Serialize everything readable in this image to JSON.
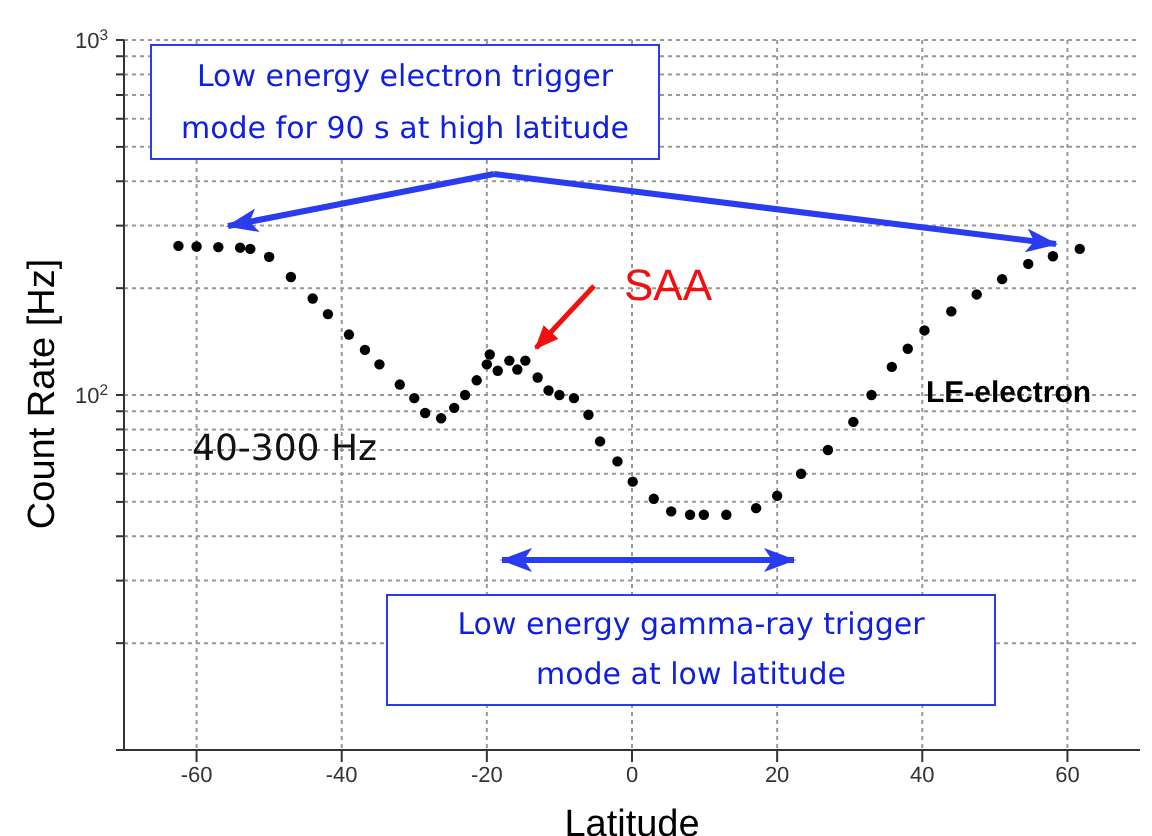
{
  "chart_data": {
    "type": "scatter",
    "xlabel": "Latitude",
    "ylabel": "Count Rate [Hz]",
    "log": "y",
    "grid": true,
    "marker": "circle",
    "xlim": [
      -70,
      70
    ],
    "xticks": [
      -60,
      -40,
      -20,
      0,
      20,
      40,
      60
    ],
    "ylim": [
      10,
      1000
    ],
    "yticks": [
      {
        "value": 10,
        "label": null
      },
      {
        "value": 20,
        "label": null
      },
      {
        "value": 30,
        "label": null
      },
      {
        "value": 40,
        "label": null
      },
      {
        "value": 50,
        "label": null
      },
      {
        "value": 60,
        "label": null
      },
      {
        "value": 70,
        "label": null
      },
      {
        "value": 80,
        "label": null
      },
      {
        "value": 90,
        "label": null
      },
      {
        "value": 100,
        "label": "10$^{2}$"
      },
      {
        "value": 200,
        "label": null
      },
      {
        "value": 300,
        "label": null
      },
      {
        "value": 400,
        "label": null
      },
      {
        "value": 500,
        "label": null
      },
      {
        "value": 600,
        "label": null
      },
      {
        "value": 700,
        "label": null
      },
      {
        "value": 800,
        "label": null
      },
      {
        "value": 900,
        "label": null
      },
      {
        "value": 1000,
        "label": "10$^{3}$"
      }
    ],
    "annotations": [
      "Low energy electron trigger mode for 90 s at high latitude",
      "SAA",
      "40-300 Hz",
      "Low energy gamma-ray trigger mode at low latitude"
    ],
    "series": [
      {
        "name": "LE-electron",
        "color": "#000000",
        "x": [
          -62.5,
          -60,
          -57,
          -54,
          -52.6,
          -50,
          -47,
          -44,
          -41.9,
          -39,
          -36.8,
          -34.8,
          -32,
          -30,
          -28.5,
          -26.3,
          -24.5,
          -23,
          -21.4,
          -20,
          -19.6,
          -18.5,
          -16.9,
          -15.8,
          -14.7,
          -13,
          -11.5,
          -10,
          -8,
          -6,
          -4.4,
          -2,
          0.1,
          3,
          5.4,
          8,
          9.9,
          13,
          17.1,
          20,
          23.3,
          27,
          30.5,
          33,
          35.8,
          38,
          40.3,
          44,
          47.5,
          51,
          54.6,
          58,
          61.7
        ],
        "values": [
          263,
          262,
          261,
          260,
          258,
          245,
          215,
          187,
          169,
          148,
          134,
          122,
          107,
          98,
          89,
          86,
          92,
          100,
          110,
          122,
          130,
          117,
          125,
          118,
          125,
          112,
          103,
          100,
          98,
          88,
          74,
          65,
          57,
          51,
          47,
          46,
          46,
          46,
          48,
          52,
          60,
          70,
          84,
          100,
          120,
          135,
          152,
          172,
          192,
          212,
          234,
          246,
          258
        ]
      }
    ]
  }
}
